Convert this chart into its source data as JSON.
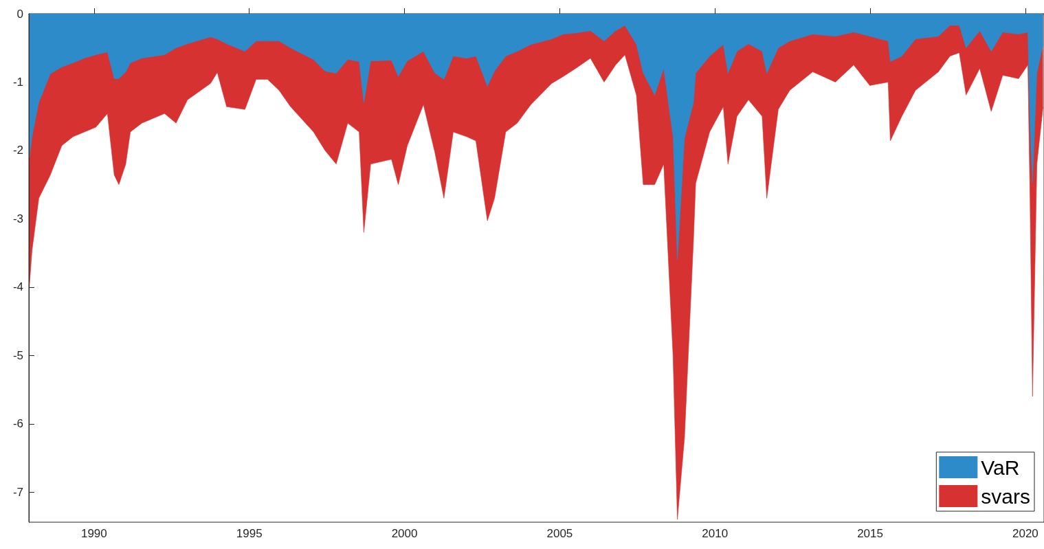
{
  "chart_data": {
    "type": "area",
    "x": [
      1987.92,
      1988.0,
      1988.22,
      1988.59,
      1988.96,
      1989.32,
      1989.69,
      1990.06,
      1990.43,
      1990.65,
      1990.8,
      1991.02,
      1991.17,
      1991.54,
      1992.27,
      1992.64,
      1993.01,
      1993.75,
      1993.97,
      1994.27,
      1994.86,
      1995.22,
      1995.59,
      1995.96,
      1996.33,
      1997.07,
      1997.44,
      1997.8,
      1998.17,
      1998.54,
      1998.69,
      1998.91,
      1999.58,
      1999.8,
      2000.09,
      2000.61,
      2000.98,
      2001.27,
      2001.57,
      2002.01,
      2002.3,
      2002.67,
      2002.9,
      2003.26,
      2003.63,
      2004.07,
      2004.74,
      2005.11,
      2005.55,
      2005.99,
      2006.43,
      2006.8,
      2007.1,
      2007.47,
      2007.69,
      2008.06,
      2008.35,
      2008.65,
      2008.79,
      2009.02,
      2009.31,
      2009.38,
      2009.83,
      2010.27,
      2010.42,
      2010.71,
      2011.08,
      2011.52,
      2011.67,
      2012.04,
      2012.41,
      2013.15,
      2013.88,
      2014.47,
      2014.99,
      2015.58,
      2015.65,
      2016.02,
      2016.46,
      2017.2,
      2017.57,
      2017.87,
      2018.09,
      2018.53,
      2018.9,
      2019.27,
      2019.78,
      2020.08,
      2020.15,
      2020.23,
      2020.37,
      2020.57
    ],
    "series": [
      {
        "name": "VaR",
        "color": "#2e8bc9",
        "values": [
          -2.1,
          -1.8,
          -1.3,
          -0.88,
          -0.78,
          -0.72,
          -0.65,
          -0.6,
          -0.56,
          -0.95,
          -0.95,
          -0.85,
          -0.72,
          -0.65,
          -0.6,
          -0.5,
          -0.44,
          -0.34,
          -0.37,
          -0.44,
          -0.55,
          -0.4,
          -0.4,
          -0.4,
          -0.5,
          -0.67,
          -0.84,
          -0.87,
          -0.67,
          -0.7,
          -1.3,
          -0.69,
          -0.68,
          -0.92,
          -0.69,
          -0.55,
          -0.87,
          -0.96,
          -0.62,
          -0.65,
          -0.62,
          -1.06,
          -0.84,
          -0.62,
          -0.55,
          -0.45,
          -0.37,
          -0.3,
          -0.28,
          -0.25,
          -0.4,
          -0.25,
          -0.17,
          -0.45,
          -0.87,
          -1.19,
          -0.8,
          -1.8,
          -3.6,
          -1.82,
          -1.3,
          -0.87,
          -0.62,
          -0.45,
          -0.87,
          -0.55,
          -0.44,
          -0.55,
          -0.87,
          -0.5,
          -0.4,
          -0.3,
          -0.33,
          -0.27,
          -0.33,
          -0.4,
          -0.7,
          -0.62,
          -0.37,
          -0.33,
          -0.17,
          -0.17,
          -0.5,
          -0.25,
          -0.55,
          -0.27,
          -0.3,
          -0.27,
          -1.64,
          -2.48,
          -0.87,
          -0.45
        ]
      },
      {
        "name": "svars",
        "color": "#d63232",
        "values": [
          -3.97,
          -3.47,
          -2.7,
          -2.36,
          -1.93,
          -1.8,
          -1.73,
          -1.66,
          -1.46,
          -2.36,
          -2.5,
          -2.2,
          -1.73,
          -1.6,
          -1.46,
          -1.6,
          -1.26,
          -1.02,
          -0.86,
          -1.36,
          -1.4,
          -0.96,
          -0.96,
          -1.12,
          -1.36,
          -1.73,
          -2.0,
          -2.2,
          -1.6,
          -1.73,
          -3.2,
          -2.2,
          -2.13,
          -2.5,
          -1.93,
          -1.33,
          -2.03,
          -2.7,
          -1.73,
          -1.8,
          -1.86,
          -3.03,
          -2.7,
          -1.73,
          -1.6,
          -1.33,
          -1.02,
          -0.92,
          -0.79,
          -0.65,
          -1.0,
          -0.75,
          -0.6,
          -1.19,
          -2.5,
          -2.5,
          -2.2,
          -5.0,
          -7.4,
          -6.2,
          -3.3,
          -2.48,
          -1.73,
          -1.36,
          -2.2,
          -1.5,
          -1.26,
          -1.5,
          -2.7,
          -1.4,
          -1.12,
          -0.85,
          -1.0,
          -0.75,
          -1.05,
          -1.0,
          -1.86,
          -1.5,
          -1.12,
          -0.85,
          -0.62,
          -0.57,
          -1.19,
          -0.8,
          -1.43,
          -0.9,
          -0.95,
          -0.75,
          -2.7,
          -5.6,
          -2.2,
          -1.36
        ]
      }
    ],
    "xlim": [
      1987.9,
      2020.6
    ],
    "xticks": [
      1990,
      1995,
      2000,
      2005,
      2010,
      2015,
      2020
    ],
    "ylim": [
      -7.44,
      0
    ],
    "yticks": [
      -7,
      -6,
      -5,
      -4,
      -3,
      -2,
      -1,
      0
    ],
    "grid": false,
    "legend": "bottom right"
  }
}
